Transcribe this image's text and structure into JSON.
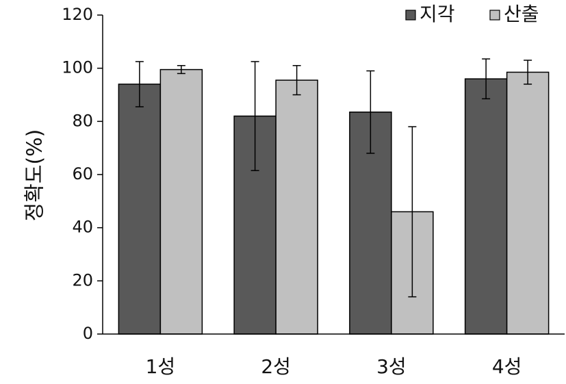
{
  "chart_data": {
    "type": "bar",
    "title": "",
    "xlabel": "",
    "ylabel": "정확도(%)",
    "ylim": [
      0,
      120
    ],
    "yticks": [
      0,
      20,
      40,
      60,
      80,
      100,
      120
    ],
    "grid": false,
    "legend_position": "top-right",
    "categories": [
      "1성",
      "2성",
      "3성",
      "4성"
    ],
    "series": [
      {
        "name": "지각",
        "color": "#595959",
        "values": [
          94,
          82,
          83.5,
          96
        ],
        "error": [
          8.5,
          20.5,
          15.5,
          7.5
        ]
      },
      {
        "name": "산출",
        "color": "#c0c0c0",
        "values": [
          99.5,
          95.5,
          46,
          98.5
        ],
        "error": [
          1.5,
          5.5,
          32,
          4.5
        ]
      }
    ]
  }
}
